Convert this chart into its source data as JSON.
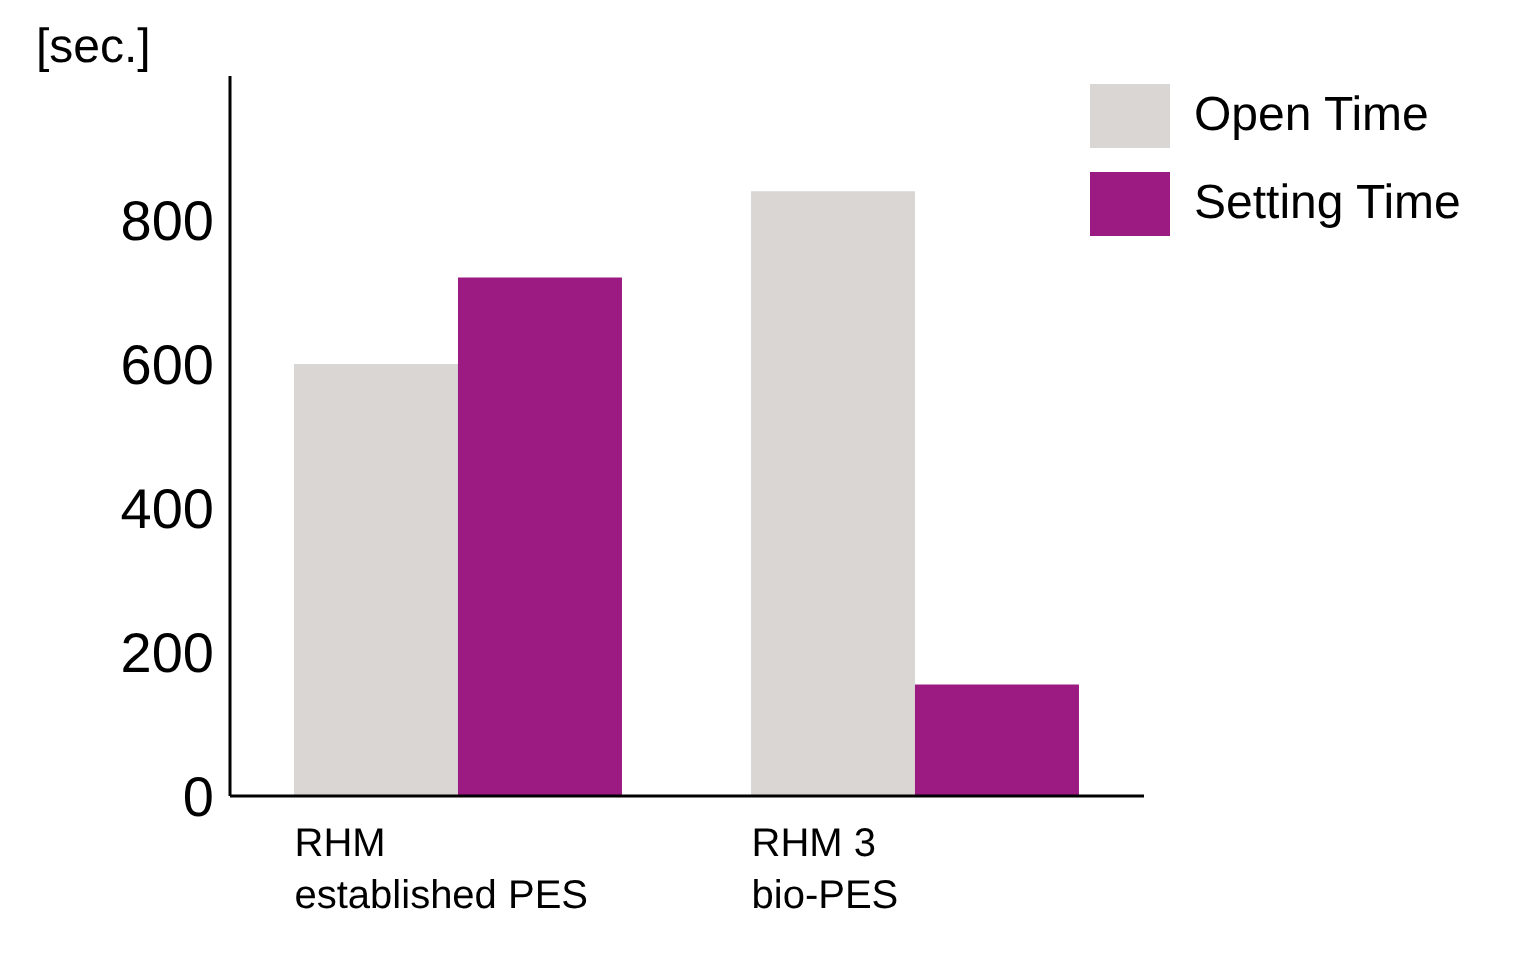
{
  "chart_data": {
    "type": "bar",
    "ylabel": "[sec.]",
    "categories": [
      "RHM\nestablished PES",
      "RHM 3\nbio-PES"
    ],
    "series": [
      {
        "name": "Open Time",
        "color": "#d9d6d3",
        "values": [
          600,
          840
        ]
      },
      {
        "name": "Setting Time",
        "color": "#9b1b82",
        "values": [
          720,
          155
        ]
      }
    ],
    "ylim": [
      0,
      1000
    ],
    "yticks": [
      0,
      200,
      400,
      600,
      800
    ],
    "grid": false,
    "legend": "top right"
  }
}
